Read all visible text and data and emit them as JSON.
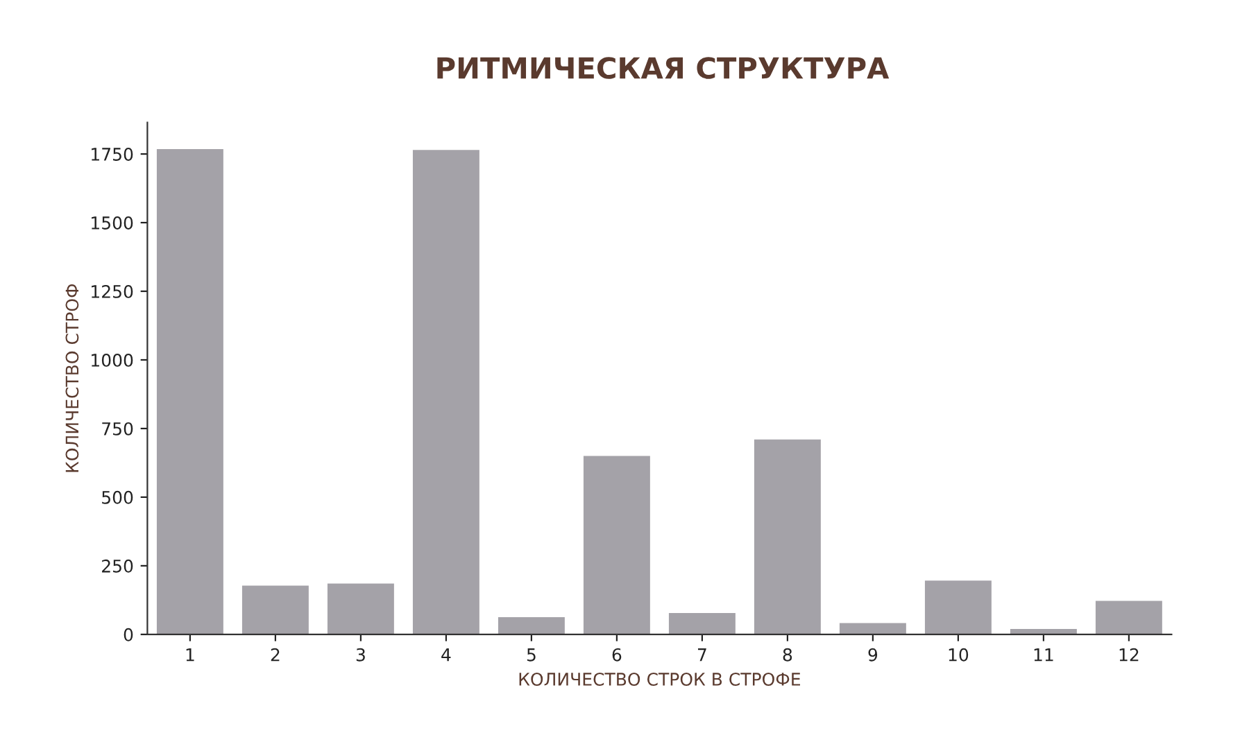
{
  "chart_data": {
    "type": "bar",
    "title": "РИТМИЧЕСКАЯ СТРУКТУРА",
    "xlabel": "КОЛИЧЕСТВО СТРОК В СТРОФЕ",
    "ylabel": "КОЛИЧЕСТВО СТРОФ",
    "categories": [
      "1",
      "2",
      "3",
      "4",
      "5",
      "6",
      "7",
      "8",
      "9",
      "10",
      "11",
      "12"
    ],
    "values": [
      1768,
      178,
      185,
      1765,
      63,
      650,
      78,
      710,
      41,
      196,
      20,
      122
    ],
    "color": "#a4a2a8",
    "ylim": [
      0,
      1865
    ],
    "yticks": [
      0,
      250,
      500,
      750,
      1000,
      1250,
      1500,
      1750
    ],
    "grid": false,
    "legend": false
  }
}
